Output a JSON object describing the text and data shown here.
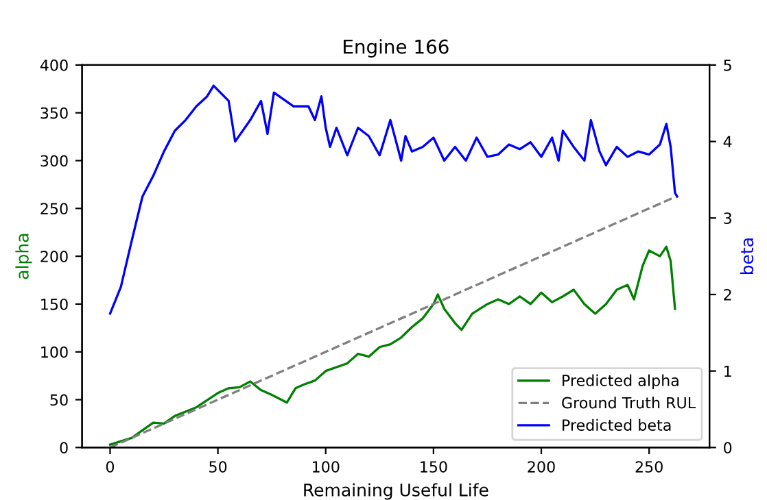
{
  "chart_data": {
    "type": "line",
    "title": "Engine 166",
    "xlabel": "Remaining Useful Life",
    "ylabel": "alpha",
    "y2label": "beta",
    "xlim": [
      -13,
      278
    ],
    "xticks": [
      0,
      50,
      100,
      150,
      200,
      250
    ],
    "ylim": [
      0,
      400
    ],
    "yticks": [
      0,
      50,
      100,
      150,
      200,
      250,
      300,
      350,
      400
    ],
    "y2lim": [
      0,
      5
    ],
    "y2ticks": [
      0,
      1,
      2,
      3,
      4,
      5
    ],
    "legend": "bottom right",
    "grid": false,
    "series": [
      {
        "name": "Predicted alpha",
        "color": "#008000",
        "line_style": "solid",
        "x": [
          0,
          10,
          20,
          25,
          30,
          40,
          50,
          55,
          60,
          65,
          70,
          75,
          82,
          86,
          90,
          95,
          100,
          110,
          115,
          120,
          125,
          130,
          135,
          140,
          145,
          150,
          152,
          155,
          160,
          163,
          168,
          175,
          180,
          185,
          190,
          195,
          200,
          205,
          210,
          215,
          220,
          225,
          230,
          235,
          240,
          243,
          247,
          250,
          255,
          258,
          260,
          262
        ],
        "values": [
          3,
          10,
          26,
          25,
          33,
          42,
          57,
          62,
          63,
          69,
          60,
          55,
          47,
          62,
          66,
          70,
          80,
          88,
          98,
          95,
          105,
          108,
          115,
          126,
          135,
          150,
          160,
          145,
          130,
          123,
          140,
          150,
          155,
          150,
          158,
          150,
          162,
          152,
          158,
          165,
          150,
          140,
          150,
          165,
          170,
          155,
          190,
          206,
          200,
          210,
          195,
          145
        ]
      },
      {
        "name": "Ground Truth RUL",
        "color": "#808080",
        "line_style": "dashed",
        "x": [
          0,
          262
        ],
        "values": [
          0,
          262
        ]
      },
      {
        "name": "Predicted beta",
        "color": "#0000ff",
        "line_style": "solid",
        "axis": "y2",
        "x": [
          0,
          5,
          10,
          15,
          20,
          25,
          30,
          35,
          40,
          45,
          48,
          55,
          58,
          65,
          70,
          73,
          76,
          85,
          92,
          95,
          98,
          100,
          102,
          105,
          110,
          115,
          120,
          125,
          130,
          135,
          137,
          140,
          145,
          150,
          155,
          160,
          165,
          170,
          175,
          180,
          185,
          190,
          195,
          200,
          205,
          208,
          210,
          215,
          220,
          223,
          227,
          230,
          235,
          240,
          245,
          250,
          255,
          258,
          260,
          262,
          263
        ],
        "values": [
          1.75,
          2.1,
          2.7,
          3.28,
          3.55,
          3.87,
          4.14,
          4.28,
          4.46,
          4.59,
          4.73,
          4.53,
          4.0,
          4.28,
          4.53,
          4.1,
          4.64,
          4.46,
          4.46,
          4.28,
          4.59,
          4.18,
          3.93,
          4.18,
          3.82,
          4.18,
          4.07,
          3.82,
          4.28,
          3.75,
          4.07,
          3.87,
          3.93,
          4.05,
          3.75,
          3.93,
          3.75,
          4.05,
          3.8,
          3.83,
          3.96,
          3.9,
          3.99,
          3.8,
          4.05,
          3.75,
          4.14,
          3.93,
          3.75,
          4.28,
          3.87,
          3.69,
          3.93,
          3.8,
          3.87,
          3.83,
          3.96,
          4.23,
          3.93,
          3.33,
          3.28
        ]
      }
    ]
  }
}
